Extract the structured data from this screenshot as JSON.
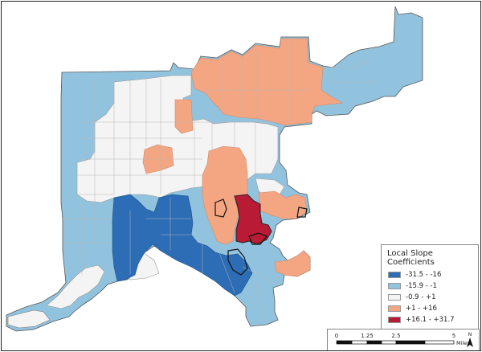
{
  "legend": {
    "title": "Local Slope Coefficients",
    "classes": [
      {
        "label": "-31.5 - -16",
        "color": "#2c6db5"
      },
      {
        "label": "-15.9 - -1",
        "color": "#92c3de"
      },
      {
        "label": "-0.9 - +1",
        "color": "#f4f4f4"
      },
      {
        "label": "+1 - +16",
        "color": "#f4a582"
      },
      {
        "label": "+16.1 - +31.7",
        "color": "#b81b33"
      }
    ]
  },
  "scale": {
    "ticks": [
      "0",
      "1.25",
      "2.5",
      "5"
    ],
    "unit": "Miles"
  },
  "north_arrow": {
    "letter": "N"
  }
}
